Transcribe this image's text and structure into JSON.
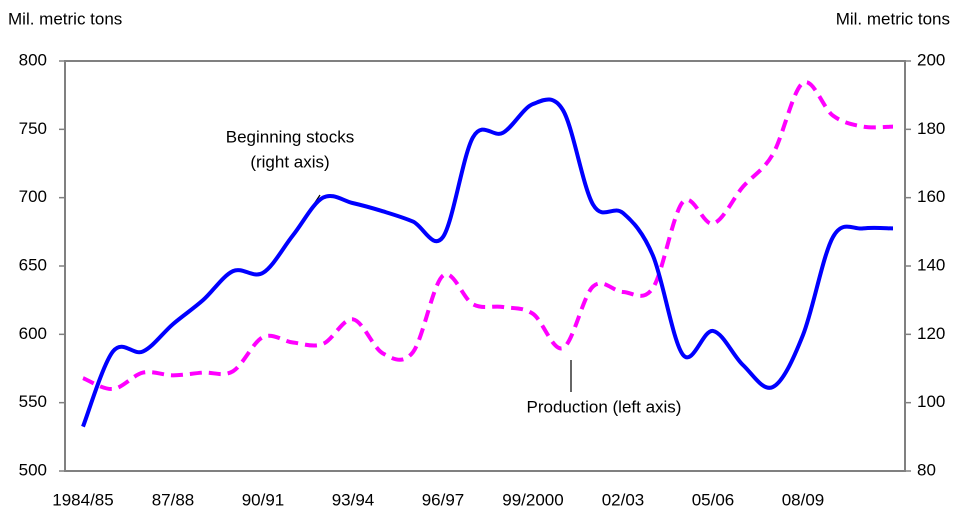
{
  "chart_data": {
    "type": "line",
    "y_label": "Mil. metric tons",
    "y2_label": "Mil. metric tons",
    "categories": [
      "1984/85",
      null,
      null,
      "87/88",
      null,
      null,
      "90/91",
      null,
      null,
      "93/94",
      null,
      null,
      "96/97",
      null,
      null,
      "99/2000",
      null,
      null,
      "02/03",
      null,
      null,
      "05/06",
      null,
      null,
      "08/09",
      null,
      null,
      null
    ],
    "series": [
      {
        "name": "Production (left axis)",
        "color": "#ff00ff",
        "dashed": true,
        "axis": "y",
        "values": [
          568,
          560,
          572,
          570,
          572,
          573,
          598,
          594,
          593,
          611,
          586,
          587,
          643,
          622,
          620,
          615,
          590,
          635,
          631,
          634,
          697,
          681,
          708,
          732,
          784,
          760,
          752,
          752
        ]
      },
      {
        "name": "Beginning stocks (right axis)",
        "color": "#0000ff",
        "dashed": false,
        "axis": "y2",
        "values": [
          93,
          115,
          115,
          123,
          130,
          138.5,
          138,
          149,
          160,
          158.4,
          156,
          153,
          148.5,
          177.7,
          179,
          187.4,
          185.6,
          158,
          155.5,
          143,
          114,
          121,
          111,
          104.6,
          119.8,
          148.5,
          151,
          151
        ]
      }
    ],
    "annotations": [
      {
        "lines": [
          "Beginning stocks",
          "(right axis)"
        ]
      },
      {
        "lines": [
          "Production (left axis)"
        ]
      }
    ],
    "ylim": [
      500,
      800
    ],
    "yticks": [
      500,
      550,
      600,
      650,
      700,
      750,
      800
    ],
    "y2lim": [
      80,
      200
    ],
    "y2ticks": [
      80,
      100,
      120,
      140,
      160,
      180,
      200
    ]
  }
}
